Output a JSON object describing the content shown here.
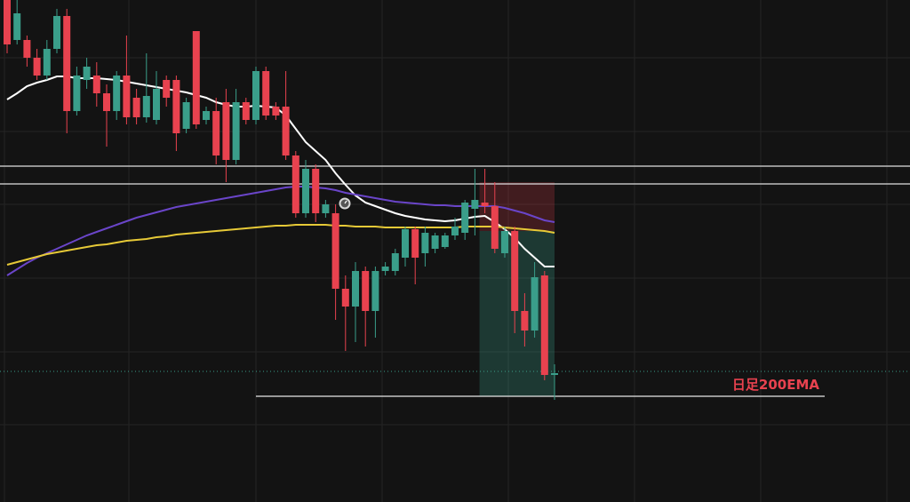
{
  "chart_data": {
    "type": "candlestick",
    "ylim": [
      0,
      113
    ],
    "up_color": "#3a9e8a",
    "down_color": "#e8424f",
    "open": [
      113,
      104,
      104,
      100,
      96,
      102,
      109.4,
      88,
      95,
      96,
      92,
      88,
      96,
      91,
      86.6,
      86,
      95,
      95,
      84,
      106,
      86,
      88,
      90,
      77,
      90,
      86,
      97,
      89,
      89,
      78,
      65,
      75,
      65,
      65,
      48,
      44,
      52,
      43,
      52,
      52,
      55,
      61.4,
      56,
      57,
      57.4,
      60,
      60.6,
      66,
      67.4,
      66.6,
      56,
      61,
      43,
      38.6,
      51,
      28.6
    ],
    "high": [
      113,
      113,
      105,
      102,
      104,
      111,
      111,
      98,
      100,
      99,
      94,
      97,
      105,
      93,
      101,
      97,
      96,
      96,
      91,
      106,
      89,
      91,
      93,
      93,
      91,
      98,
      98,
      90,
      97,
      79,
      77,
      76,
      68,
      67,
      51,
      54,
      53,
      53,
      54,
      57,
      62,
      62,
      62,
      60.6,
      60.6,
      64,
      68,
      75,
      75,
      72,
      62,
      62,
      47,
      54,
      52,
      31
    ],
    "low": [
      101,
      103,
      98,
      95,
      95,
      101,
      83,
      87,
      93,
      89,
      80,
      86,
      85,
      85,
      85.4,
      85,
      89,
      79,
      83,
      84,
      85,
      76,
      72,
      76,
      85,
      85,
      86,
      86,
      77,
      64,
      64,
      63,
      64,
      41,
      34,
      36,
      35,
      37,
      51,
      51,
      53,
      49,
      53,
      56,
      57,
      59,
      59,
      60,
      65,
      56,
      55,
      38,
      35,
      37,
      27.4,
      23
    ],
    "close": [
      103,
      110,
      100,
      96,
      102,
      109.4,
      88,
      96,
      98,
      92,
      88,
      96,
      86.6,
      86.6,
      91.4,
      93,
      91,
      83,
      90,
      85,
      88,
      78,
      77,
      90,
      86,
      97,
      87,
      87,
      78,
      65,
      75,
      65,
      67,
      48,
      44,
      52,
      43,
      52,
      53,
      56,
      61.4,
      55,
      60.6,
      60,
      60,
      62,
      67.4,
      68,
      66.6,
      57,
      61,
      43,
      38.6,
      50.6,
      28.6,
      29
    ],
    "lines": [
      {
        "color": "#ffffff",
        "values": [
          90.6,
          92,
          93.6,
          94.4,
          95,
          95.8,
          95.8,
          95.4,
          95.4,
          95.4,
          95.2,
          95,
          94.6,
          94.2,
          93.8,
          93.4,
          93,
          92.6,
          92.2,
          91.6,
          91,
          90,
          89.4,
          89,
          89,
          89.2,
          89,
          88.8,
          87,
          84,
          81,
          79,
          77,
          74,
          71.4,
          69,
          67.4,
          66.6,
          65.8,
          65,
          64.4,
          64,
          63.6,
          63.4,
          63.2,
          63.4,
          63.8,
          64.2,
          64.4,
          63,
          61.4,
          59.4,
          57,
          55,
          53,
          53
        ]
      },
      {
        "color": "#6a45c9",
        "values": [
          51,
          52.4,
          53.8,
          55,
          56,
          57,
          58,
          59,
          60,
          60.8,
          61.6,
          62.4,
          63.2,
          64,
          64.6,
          65.2,
          65.8,
          66.4,
          66.8,
          67.2,
          67.6,
          68,
          68.4,
          68.8,
          69.2,
          69.6,
          70,
          70.4,
          70.8,
          71,
          71,
          70.8,
          70.6,
          70.2,
          69.6,
          69.2,
          68.8,
          68.4,
          68,
          67.6,
          67.4,
          67.2,
          67,
          66.8,
          66.8,
          66.6,
          66.6,
          66.6,
          66.6,
          66.6,
          66.2,
          65.6,
          65,
          64.2,
          63.4,
          63
        ]
      },
      {
        "color": "#e6c937",
        "values": [
          53.4,
          54,
          54.6,
          55.2,
          55.8,
          56.2,
          56.6,
          57,
          57.4,
          57.8,
          58,
          58.4,
          58.8,
          59,
          59.2,
          59.6,
          59.8,
          60.2,
          60.4,
          60.6,
          60.8,
          61,
          61.2,
          61.4,
          61.6,
          61.8,
          62,
          62.2,
          62.2,
          62.4,
          62.4,
          62.4,
          62.4,
          62.2,
          62.2,
          62,
          62,
          62,
          61.8,
          61.8,
          61.8,
          61.8,
          61.8,
          61.8,
          61.8,
          61.8,
          62,
          62,
          62,
          62,
          61.8,
          61.6,
          61.4,
          61.2,
          61,
          60.6
        ]
      }
    ],
    "levels": [
      75.6,
      71.6
    ],
    "last_price": 29.4,
    "position": {
      "entry": 61,
      "stop": 72,
      "target": 23.8
    },
    "annotation": {
      "text": "日足200EMA",
      "value": 23.8,
      "color": "#e8424f"
    }
  }
}
